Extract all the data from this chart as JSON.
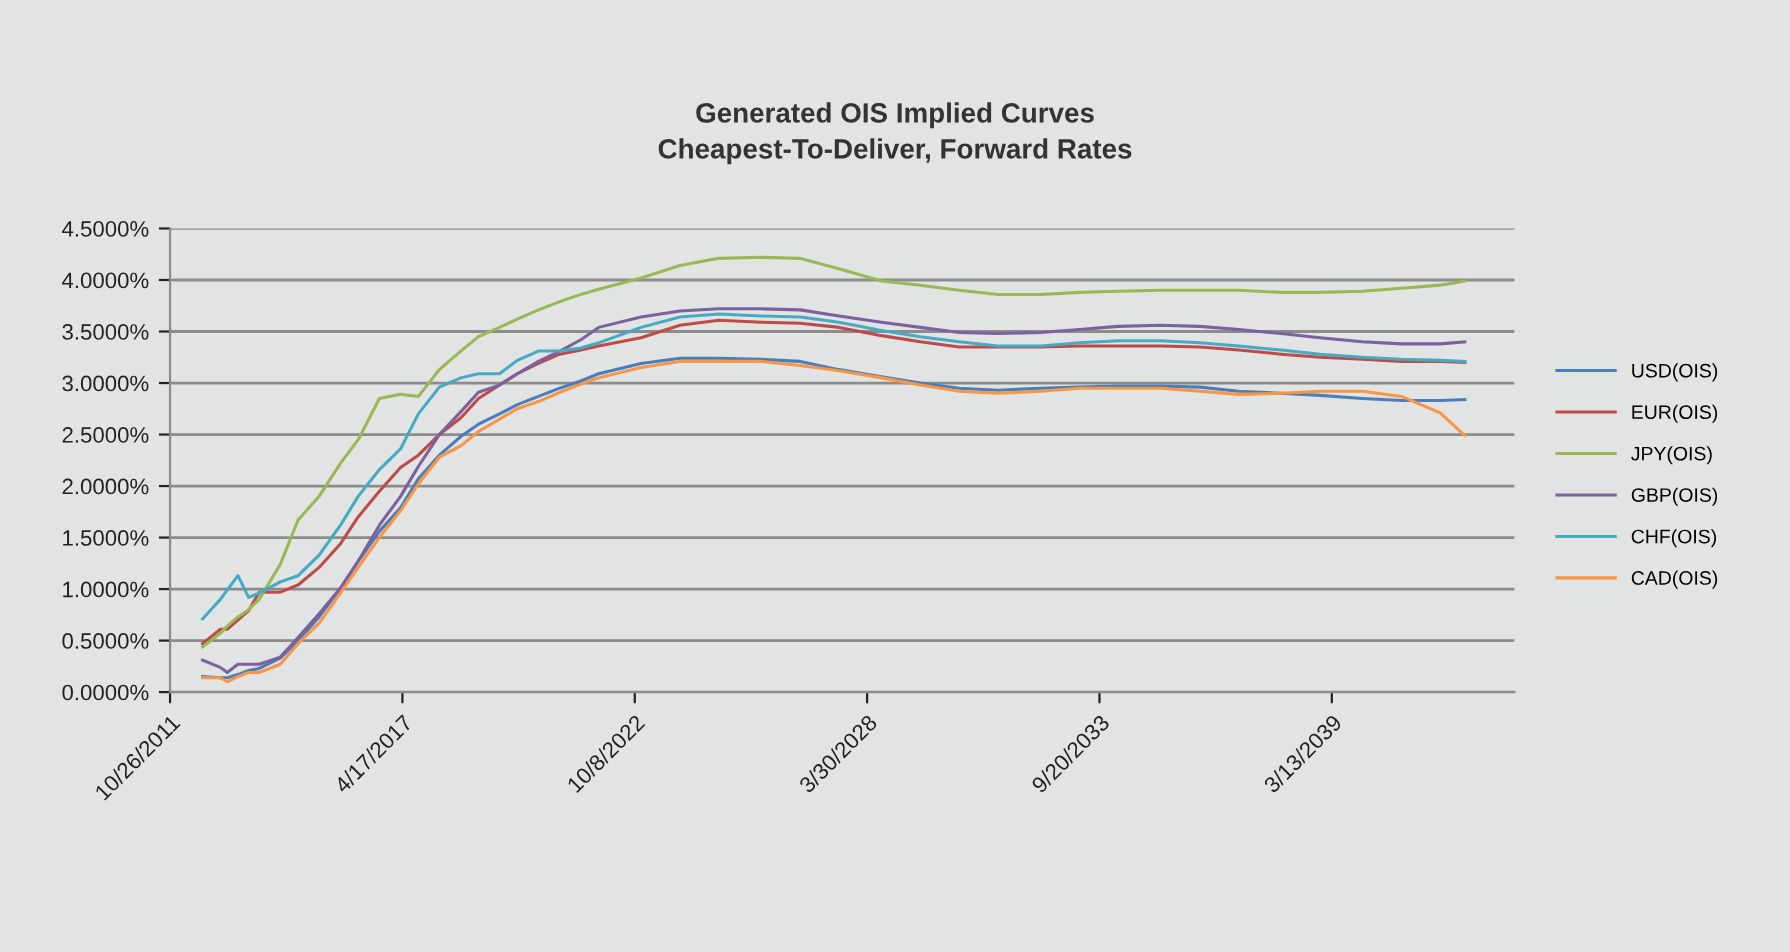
{
  "chart_data": {
    "type": "line",
    "title": "Generated OIS Implied Curves\nCheapest-To-Deliver, Forward Rates",
    "x": [
      "2012-08",
      "2013-01",
      "2013-03",
      "2013-06",
      "2013-09",
      "2013-12",
      "2014-06",
      "2014-11",
      "2015-05",
      "2015-11",
      "2016-04",
      "2016-10",
      "2017-04",
      "2017-09",
      "2018-03",
      "2018-09",
      "2019-02",
      "2019-08",
      "2020-01",
      "2020-07",
      "2021-01",
      "2021-07",
      "2021-12",
      "2022-12",
      "2023-11",
      "2024-10",
      "2025-10",
      "2026-09",
      "2027-08",
      "2028-08",
      "2029-07",
      "2030-06",
      "2031-05",
      "2032-05",
      "2033-04",
      "2034-03",
      "2035-03",
      "2036-02",
      "2037-01",
      "2038-01",
      "2038-12",
      "2039-12",
      "2040-11",
      "2041-10",
      "2042-05"
    ],
    "series": [
      {
        "name": "USD(OIS)",
        "color": "#4a7ebb",
        "values": [
          0.15,
          0.14,
          0.14,
          0.17,
          0.21,
          0.23,
          0.33,
          0.5,
          0.73,
          1.01,
          1.27,
          1.56,
          1.79,
          2.07,
          2.3,
          2.48,
          2.6,
          2.7,
          2.79,
          2.87,
          2.95,
          3.02,
          3.09,
          3.19,
          3.24,
          3.24,
          3.23,
          3.21,
          3.13,
          3.06,
          3.0,
          2.95,
          2.93,
          2.95,
          2.96,
          2.97,
          2.97,
          2.96,
          2.92,
          2.9,
          2.88,
          2.85,
          2.83,
          2.83,
          2.84
        ]
      },
      {
        "name": "EUR(OIS)",
        "color": "#be4b48",
        "values": [
          0.47,
          0.61,
          0.61,
          0.7,
          0.79,
          0.97,
          0.97,
          1.04,
          1.21,
          1.44,
          1.7,
          1.95,
          2.18,
          2.3,
          2.5,
          2.66,
          2.85,
          2.98,
          3.09,
          3.19,
          3.28,
          3.32,
          3.36,
          3.44,
          3.56,
          3.61,
          3.59,
          3.58,
          3.54,
          3.46,
          3.4,
          3.35,
          3.35,
          3.35,
          3.36,
          3.36,
          3.36,
          3.35,
          3.32,
          3.28,
          3.25,
          3.23,
          3.21,
          3.21,
          3.2
        ]
      },
      {
        "name": "JPY(OIS)",
        "color": "#98b954",
        "values": [
          0.44,
          0.57,
          0.64,
          0.73,
          0.8,
          0.9,
          1.24,
          1.67,
          1.9,
          2.22,
          2.45,
          2.85,
          2.89,
          2.87,
          3.13,
          3.31,
          3.45,
          3.54,
          3.62,
          3.71,
          3.79,
          3.86,
          3.91,
          4.02,
          4.14,
          4.21,
          4.22,
          4.21,
          4.11,
          3.99,
          3.95,
          3.9,
          3.86,
          3.86,
          3.88,
          3.89,
          3.9,
          3.9,
          3.9,
          3.88,
          3.88,
          3.89,
          3.92,
          3.95,
          3.99
        ]
      },
      {
        "name": "GBP(OIS)",
        "color": "#7d60a0",
        "values": [
          0.31,
          0.24,
          0.19,
          0.27,
          0.27,
          0.27,
          0.34,
          0.53,
          0.76,
          1.01,
          1.27,
          1.62,
          1.9,
          2.19,
          2.5,
          2.72,
          2.91,
          2.98,
          3.09,
          3.21,
          3.31,
          3.42,
          3.54,
          3.64,
          3.7,
          3.72,
          3.72,
          3.71,
          3.65,
          3.59,
          3.54,
          3.49,
          3.48,
          3.49,
          3.52,
          3.55,
          3.56,
          3.55,
          3.52,
          3.48,
          3.44,
          3.4,
          3.38,
          3.38,
          3.4
        ]
      },
      {
        "name": "CHF(OIS)",
        "color": "#46aac5",
        "values": [
          0.71,
          0.9,
          0.99,
          1.13,
          0.92,
          0.96,
          1.07,
          1.13,
          1.33,
          1.62,
          1.9,
          2.16,
          2.36,
          2.7,
          2.96,
          3.05,
          3.09,
          3.09,
          3.22,
          3.31,
          3.31,
          3.34,
          3.39,
          3.54,
          3.64,
          3.67,
          3.65,
          3.64,
          3.59,
          3.51,
          3.45,
          3.4,
          3.36,
          3.36,
          3.39,
          3.41,
          3.41,
          3.39,
          3.36,
          3.32,
          3.28,
          3.25,
          3.23,
          3.22,
          3.21
        ]
      },
      {
        "name": "CAD(OIS)",
        "color": "#f79646",
        "values": [
          0.14,
          0.14,
          0.1,
          0.15,
          0.19,
          0.19,
          0.27,
          0.47,
          0.67,
          0.96,
          1.21,
          1.5,
          1.76,
          2.02,
          2.28,
          2.39,
          2.53,
          2.65,
          2.75,
          2.82,
          2.91,
          2.99,
          3.05,
          3.15,
          3.21,
          3.21,
          3.21,
          3.17,
          3.12,
          3.05,
          2.98,
          2.92,
          2.9,
          2.92,
          2.95,
          2.95,
          2.95,
          2.92,
          2.89,
          2.9,
          2.92,
          2.92,
          2.87,
          2.71,
          2.49
        ]
      }
    ],
    "xlim": [
      "2011-10-26",
      "2043-07"
    ],
    "xticks": [
      {
        "value": "2011-10-26",
        "label": "10/26/2011"
      },
      {
        "value": "2017-04-17",
        "label": "4/17/2017"
      },
      {
        "value": "2022-10-08",
        "label": "10/8/2022"
      },
      {
        "value": "2028-03-30",
        "label": "3/30/2028"
      },
      {
        "value": "2033-09-20",
        "label": "9/20/2033"
      },
      {
        "value": "2039-03-13",
        "label": "3/13/2039"
      }
    ],
    "ylim": [
      0,
      4.5
    ],
    "yticks": [
      {
        "value": 0,
        "label": "0.0000%"
      },
      {
        "value": 0.5,
        "label": "0.5000%"
      },
      {
        "value": 1,
        "label": "1.0000%"
      },
      {
        "value": 1.5,
        "label": "1.5000%"
      },
      {
        "value": 2,
        "label": "2.0000%"
      },
      {
        "value": 2.5,
        "label": "2.5000%"
      },
      {
        "value": 3,
        "label": "3.0000%"
      },
      {
        "value": 3.5,
        "label": "3.5000%"
      },
      {
        "value": 4,
        "label": "4.0000%"
      },
      {
        "value": 4.5,
        "label": "4.5000%"
      }
    ],
    "grid": "y",
    "legend": "right",
    "marker": "none",
    "line_style": "solid"
  }
}
